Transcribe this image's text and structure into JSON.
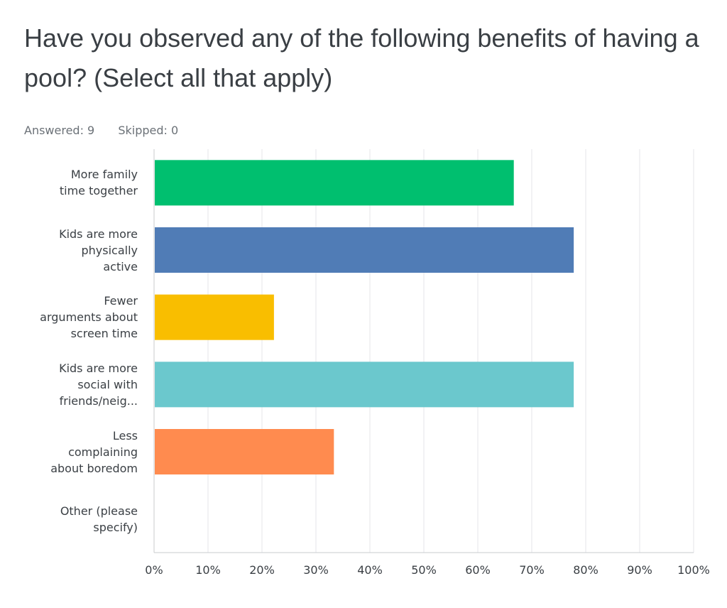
{
  "title": "Have you observed any of the following benefits of having a pool? (Select all that apply)",
  "stats": {
    "answered": "Answered: 9",
    "skipped": "Skipped: 0"
  },
  "chart_data": {
    "type": "bar",
    "orientation": "horizontal",
    "categories": [
      [
        "More family",
        "time together"
      ],
      [
        "Kids are more",
        "physically",
        "active"
      ],
      [
        "Fewer",
        "arguments about",
        "screen time"
      ],
      [
        "Kids are more",
        "social with",
        "friends/neig..."
      ],
      [
        "Less",
        "complaining",
        "about boredom"
      ],
      [
        "Other (please",
        "specify)"
      ]
    ],
    "values": [
      66.67,
      77.78,
      22.22,
      77.78,
      33.33,
      0
    ],
    "colors": [
      "#00bf6f",
      "#507cb6",
      "#f9be00",
      "#6bc8cd",
      "#ff8b4f",
      "#9d9d9d"
    ],
    "xlim": [
      0,
      100
    ],
    "xticks": [
      "0%",
      "10%",
      "20%",
      "30%",
      "40%",
      "50%",
      "60%",
      "70%",
      "80%",
      "90%",
      "100%"
    ],
    "grid": true
  }
}
